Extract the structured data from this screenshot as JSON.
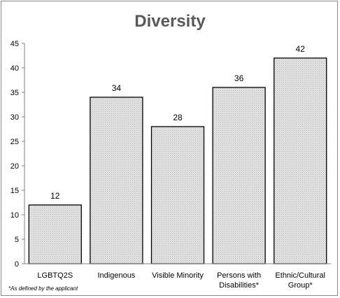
{
  "chart_data": {
    "type": "bar",
    "title": "Diversity",
    "xlabel": "",
    "ylabel": "",
    "categories": [
      [
        "LGBTQ2S"
      ],
      [
        "Indigenous"
      ],
      [
        "Visible Minority"
      ],
      [
        "Persons with",
        "Disabilities*"
      ],
      [
        "Ethnic/Cultural",
        "Group*"
      ]
    ],
    "values": [
      12,
      34,
      28,
      36,
      42
    ],
    "yticks": [
      "0",
      "5",
      "10",
      "15",
      "20",
      "25",
      "30",
      "35",
      "40",
      "45"
    ],
    "ylim": [
      0,
      45
    ],
    "grid": false,
    "legend": "none",
    "footnote": "*As defined by the applicant",
    "colors": {
      "bar_fill": "#d9d9d9",
      "bar_stroke": "#000000",
      "axis": "#808080",
      "title": "#595959"
    }
  }
}
